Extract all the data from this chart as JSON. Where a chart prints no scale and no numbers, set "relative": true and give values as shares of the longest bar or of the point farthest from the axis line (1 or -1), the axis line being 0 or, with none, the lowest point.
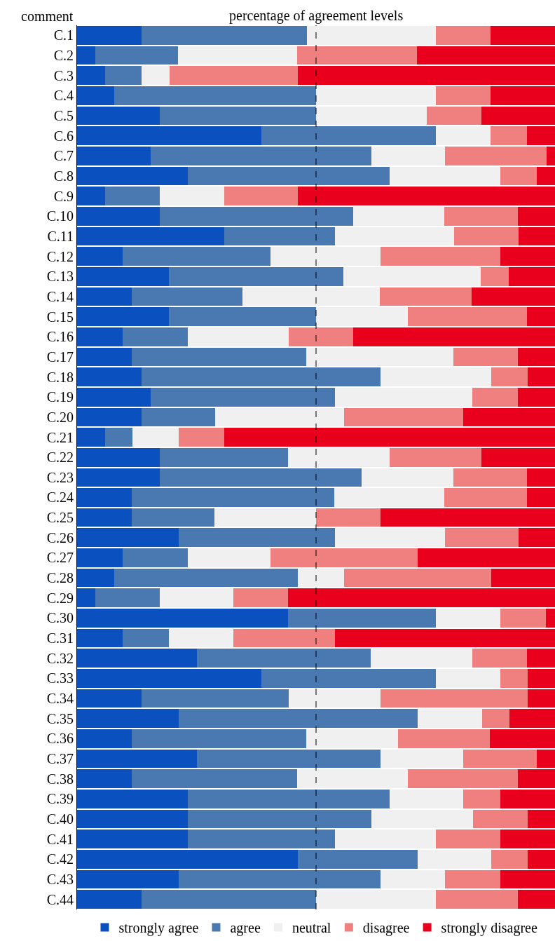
{
  "chart_data": {
    "type": "bar",
    "orientation": "horizontal",
    "stacked": true,
    "relative": true,
    "xlabel": "percentage of agreement levels",
    "ylabel": "comment",
    "legend": "bottom",
    "categories": [
      "C.1",
      "C.2",
      "C.3",
      "C.4",
      "C.5",
      "C.6",
      "C.7",
      "C.8",
      "C.9",
      "C.10",
      "C.11",
      "C.12",
      "C.13",
      "C.14",
      "C.15",
      "C.16",
      "C.17",
      "C.18",
      "C.19",
      "C.20",
      "C.21",
      "C.22",
      "C.23",
      "C.24",
      "C.25",
      "C.26",
      "C.27",
      "C.28",
      "C.29",
      "C.30",
      "C.31",
      "C.32",
      "C.33",
      "C.34",
      "C.35",
      "C.36",
      "C.37",
      "C.38",
      "C.39",
      "C.40",
      "C.41",
      "C.42",
      "C.43",
      "C.44"
    ],
    "series": [
      {
        "name": "strongly agree",
        "color": "#0a50be",
        "values": [
          0.135,
          0.038,
          0.058,
          0.077,
          0.173,
          0.385,
          0.154,
          0.231,
          0.058,
          0.173,
          0.308,
          0.096,
          0.192,
          0.115,
          0.192,
          0.096,
          0.115,
          0.135,
          0.154,
          0.135,
          0.058,
          0.173,
          0.173,
          0.115,
          0.115,
          0.212,
          0.096,
          0.077,
          0.038,
          0.442,
          0.096,
          0.25,
          0.385,
          0.135,
          0.212,
          0.115,
          0.25,
          0.115,
          0.231,
          0.231,
          0.231,
          0.462,
          0.212,
          0.135
        ]
      },
      {
        "name": "agree",
        "color": "#4a78b0",
        "values": [
          0.346,
          0.173,
          0.077,
          0.423,
          0.327,
          0.365,
          0.462,
          0.423,
          0.115,
          0.404,
          0.231,
          0.308,
          0.365,
          0.231,
          0.308,
          0.135,
          0.365,
          0.5,
          0.385,
          0.154,
          0.058,
          0.269,
          0.423,
          0.423,
          0.173,
          0.327,
          0.135,
          0.385,
          0.135,
          0.308,
          0.096,
          0.365,
          0.365,
          0.308,
          0.5,
          0.365,
          0.385,
          0.346,
          0.423,
          0.385,
          0.308,
          0.25,
          0.423,
          0.365
        ]
      },
      {
        "name": "neutral",
        "color": "#f0f0f0",
        "values": [
          0.269,
          0.25,
          0.058,
          0.25,
          0.231,
          0.115,
          0.154,
          0.231,
          0.135,
          0.192,
          0.25,
          0.231,
          0.288,
          0.288,
          0.192,
          0.212,
          0.308,
          0.231,
          0.288,
          0.269,
          0.096,
          0.212,
          0.192,
          0.231,
          0.212,
          0.231,
          0.173,
          0.096,
          0.154,
          0.135,
          0.135,
          0.212,
          0.135,
          0.192,
          0.135,
          0.192,
          0.173,
          0.231,
          0.154,
          0.212,
          0.212,
          0.154,
          0.135,
          0.25
        ]
      },
      {
        "name": "disagree",
        "color": "#f08080",
        "values": [
          0.115,
          0.25,
          0.269,
          0.115,
          0.115,
          0.077,
          0.212,
          0.077,
          0.154,
          0.154,
          0.135,
          0.25,
          0.058,
          0.192,
          0.25,
          0.135,
          0.135,
          0.077,
          0.096,
          0.25,
          0.096,
          0.192,
          0.154,
          0.173,
          0.135,
          0.154,
          0.308,
          0.308,
          0.115,
          0.096,
          0.212,
          0.115,
          0.058,
          0.308,
          0.058,
          0.192,
          0.154,
          0.231,
          0.077,
          0.115,
          0.135,
          0.077,
          0.115,
          0.173
        ]
      },
      {
        "name": "strongly disagree",
        "color": "#e8001c",
        "values": [
          0.135,
          0.289,
          0.538,
          0.135,
          0.154,
          0.058,
          0.018,
          0.038,
          0.538,
          0.077,
          0.076,
          0.115,
          0.097,
          0.174,
          0.058,
          0.422,
          0.077,
          0.057,
          0.077,
          0.192,
          0.692,
          0.154,
          0.058,
          0.058,
          0.365,
          0.076,
          0.288,
          0.134,
          0.558,
          0.019,
          0.461,
          0.058,
          0.057,
          0.057,
          0.095,
          0.136,
          0.038,
          0.077,
          0.115,
          0.057,
          0.114,
          0.057,
          0.115,
          0.077
        ]
      }
    ],
    "ref_lines": [
      {
        "axis": "x",
        "value": 0.5,
        "color": "#000000",
        "line_style": "dashed"
      }
    ]
  }
}
